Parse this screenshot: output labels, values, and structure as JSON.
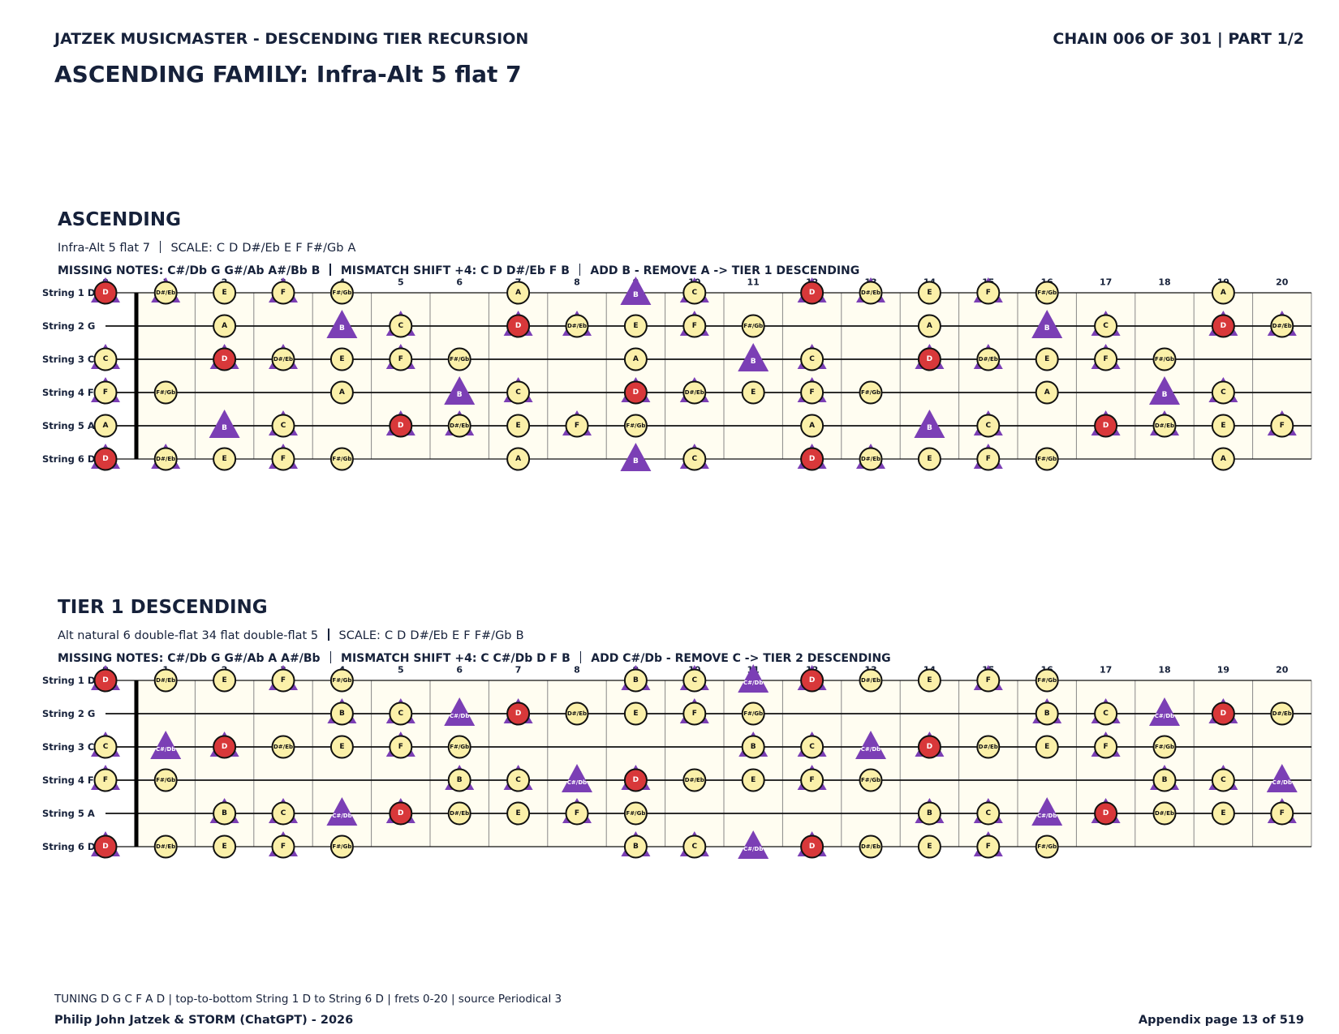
{
  "header": {
    "series_title": "JATZEK MUSICMASTER - DESCENDING TIER RECURSION",
    "chain": "CHAIN 006 OF 301  |  PART 1/2",
    "title": "ASCENDING FAMILY: Infra-Alt 5 flat 7"
  },
  "frets": [
    0,
    1,
    2,
    3,
    4,
    5,
    6,
    7,
    8,
    9,
    10,
    11,
    12,
    13,
    14,
    15,
    16,
    17,
    18,
    19,
    20
  ],
  "string_labels": [
    "String 1 D",
    "String 2 G",
    "String 3 C",
    "String 4 F",
    "String 5 A",
    "String 6 D"
  ],
  "root": "D",
  "colors": {
    "scale": "#fbf0a9",
    "root": "#d8383a",
    "shift": "#7b3fb5",
    "board": "#fffdf1"
  },
  "sections": [
    {
      "heading": "ASCENDING",
      "name": "Infra-Alt 5 flat 7",
      "scale_label": "SCALE:",
      "scale": [
        "C",
        "D",
        "D#/Eb",
        "E",
        "F",
        "F#/Gb",
        "A"
      ],
      "missing_label": "MISSING NOTES:",
      "missing": [
        "C#/Db",
        "G",
        "G#/Ab",
        "A#/Bb",
        "B"
      ],
      "shift_label": "MISMATCH SHIFT +4:",
      "shift": [
        "C",
        "D",
        "D#/Eb",
        "F",
        "B"
      ],
      "action": "ADD B - REMOVE A -> TIER 1 DESCENDING",
      "strings": [
        {
          "notes": [
            "D",
            "D#/Eb",
            "E",
            "F",
            "F#/Gb",
            null,
            null,
            "A",
            null,
            "B",
            "C",
            null,
            "D",
            "D#/Eb",
            "E",
            "F",
            "F#/Gb",
            null,
            null,
            "A",
            null
          ]
        },
        {
          "notes": [
            null,
            null,
            "A",
            null,
            "B",
            "C",
            null,
            "D",
            "D#/Eb",
            "E",
            "F",
            "F#/Gb",
            null,
            null,
            "A",
            null,
            "B",
            "C",
            null,
            "D",
            "D#/Eb"
          ]
        },
        {
          "notes": [
            "C",
            null,
            "D",
            "D#/Eb",
            "E",
            "F",
            "F#/Gb",
            null,
            null,
            "A",
            null,
            "B",
            "C",
            null,
            "D",
            "D#/Eb",
            "E",
            "F",
            "F#/Gb",
            null,
            null
          ]
        },
        {
          "notes": [
            "F",
            "F#/Gb",
            null,
            null,
            "A",
            null,
            "B",
            "C",
            null,
            "D",
            "D#/Eb",
            "E",
            "F",
            "F#/Gb",
            null,
            null,
            "A",
            null,
            "B",
            "C",
            null
          ]
        },
        {
          "notes": [
            "A",
            null,
            "B",
            "C",
            null,
            "D",
            "D#/Eb",
            "E",
            "F",
            "F#/Gb",
            null,
            null,
            "A",
            null,
            "B",
            "C",
            null,
            "D",
            "D#/Eb",
            "E",
            "F"
          ]
        },
        {
          "notes": [
            "D",
            "D#/Eb",
            "E",
            "F",
            "F#/Gb",
            null,
            null,
            "A",
            null,
            "B",
            "C",
            null,
            "D",
            "D#/Eb",
            "E",
            "F",
            "F#/Gb",
            null,
            null,
            "A",
            null
          ]
        }
      ]
    },
    {
      "heading": "TIER 1 DESCENDING",
      "name": "Alt natural 6 double-flat 34 flat double-flat 5",
      "scale_label": "SCALE:",
      "scale": [
        "C",
        "D",
        "D#/Eb",
        "E",
        "F",
        "F#/Gb",
        "B"
      ],
      "missing_label": "MISSING NOTES:",
      "missing": [
        "C#/Db",
        "G",
        "G#/Ab",
        "A",
        "A#/Bb"
      ],
      "shift_label": "MISMATCH SHIFT +4:",
      "shift": [
        "C",
        "C#/Db",
        "D",
        "F",
        "B"
      ],
      "action": "ADD C#/Db - REMOVE C -> TIER 2 DESCENDING",
      "strings": [
        {
          "notes": [
            "D",
            "D#/Eb",
            "E",
            "F",
            "F#/Gb",
            null,
            null,
            null,
            null,
            "B",
            "C",
            "C#/Db",
            "D",
            "D#/Eb",
            "E",
            "F",
            "F#/Gb",
            null,
            null,
            null,
            null
          ]
        },
        {
          "notes": [
            null,
            null,
            null,
            null,
            "B",
            "C",
            "C#/Db",
            "D",
            "D#/Eb",
            "E",
            "F",
            "F#/Gb",
            null,
            null,
            null,
            null,
            "B",
            "C",
            "C#/Db",
            "D",
            "D#/Eb"
          ]
        },
        {
          "notes": [
            "C",
            "C#/Db",
            "D",
            "D#/Eb",
            "E",
            "F",
            "F#/Gb",
            null,
            null,
            null,
            null,
            "B",
            "C",
            "C#/Db",
            "D",
            "D#/Eb",
            "E",
            "F",
            "F#/Gb",
            null,
            null
          ]
        },
        {
          "notes": [
            "F",
            "F#/Gb",
            null,
            null,
            null,
            null,
            "B",
            "C",
            "C#/Db",
            "D",
            "D#/Eb",
            "E",
            "F",
            "F#/Gb",
            null,
            null,
            null,
            null,
            "B",
            "C",
            "C#/Db"
          ]
        },
        {
          "notes": [
            null,
            null,
            "B",
            "C",
            "C#/Db",
            "D",
            "D#/Eb",
            "E",
            "F",
            "F#/Gb",
            null,
            null,
            null,
            null,
            "B",
            "C",
            "C#/Db",
            "D",
            "D#/Eb",
            "E",
            "F"
          ]
        },
        {
          "notes": [
            "D",
            "D#/Eb",
            "E",
            "F",
            "F#/Gb",
            null,
            null,
            null,
            null,
            "B",
            "C",
            "C#/Db",
            "D",
            "D#/Eb",
            "E",
            "F",
            "F#/Gb",
            null,
            null,
            null,
            null
          ]
        }
      ]
    }
  ],
  "footer": {
    "note": "TUNING D G C F A D | top-to-bottom String 1 D to String 6 D | frets 0-20 | source Periodical 3",
    "credit": "Philip John Jatzek & STORM (ChatGPT) - 2026",
    "page": "Appendix page 13 of 519"
  }
}
